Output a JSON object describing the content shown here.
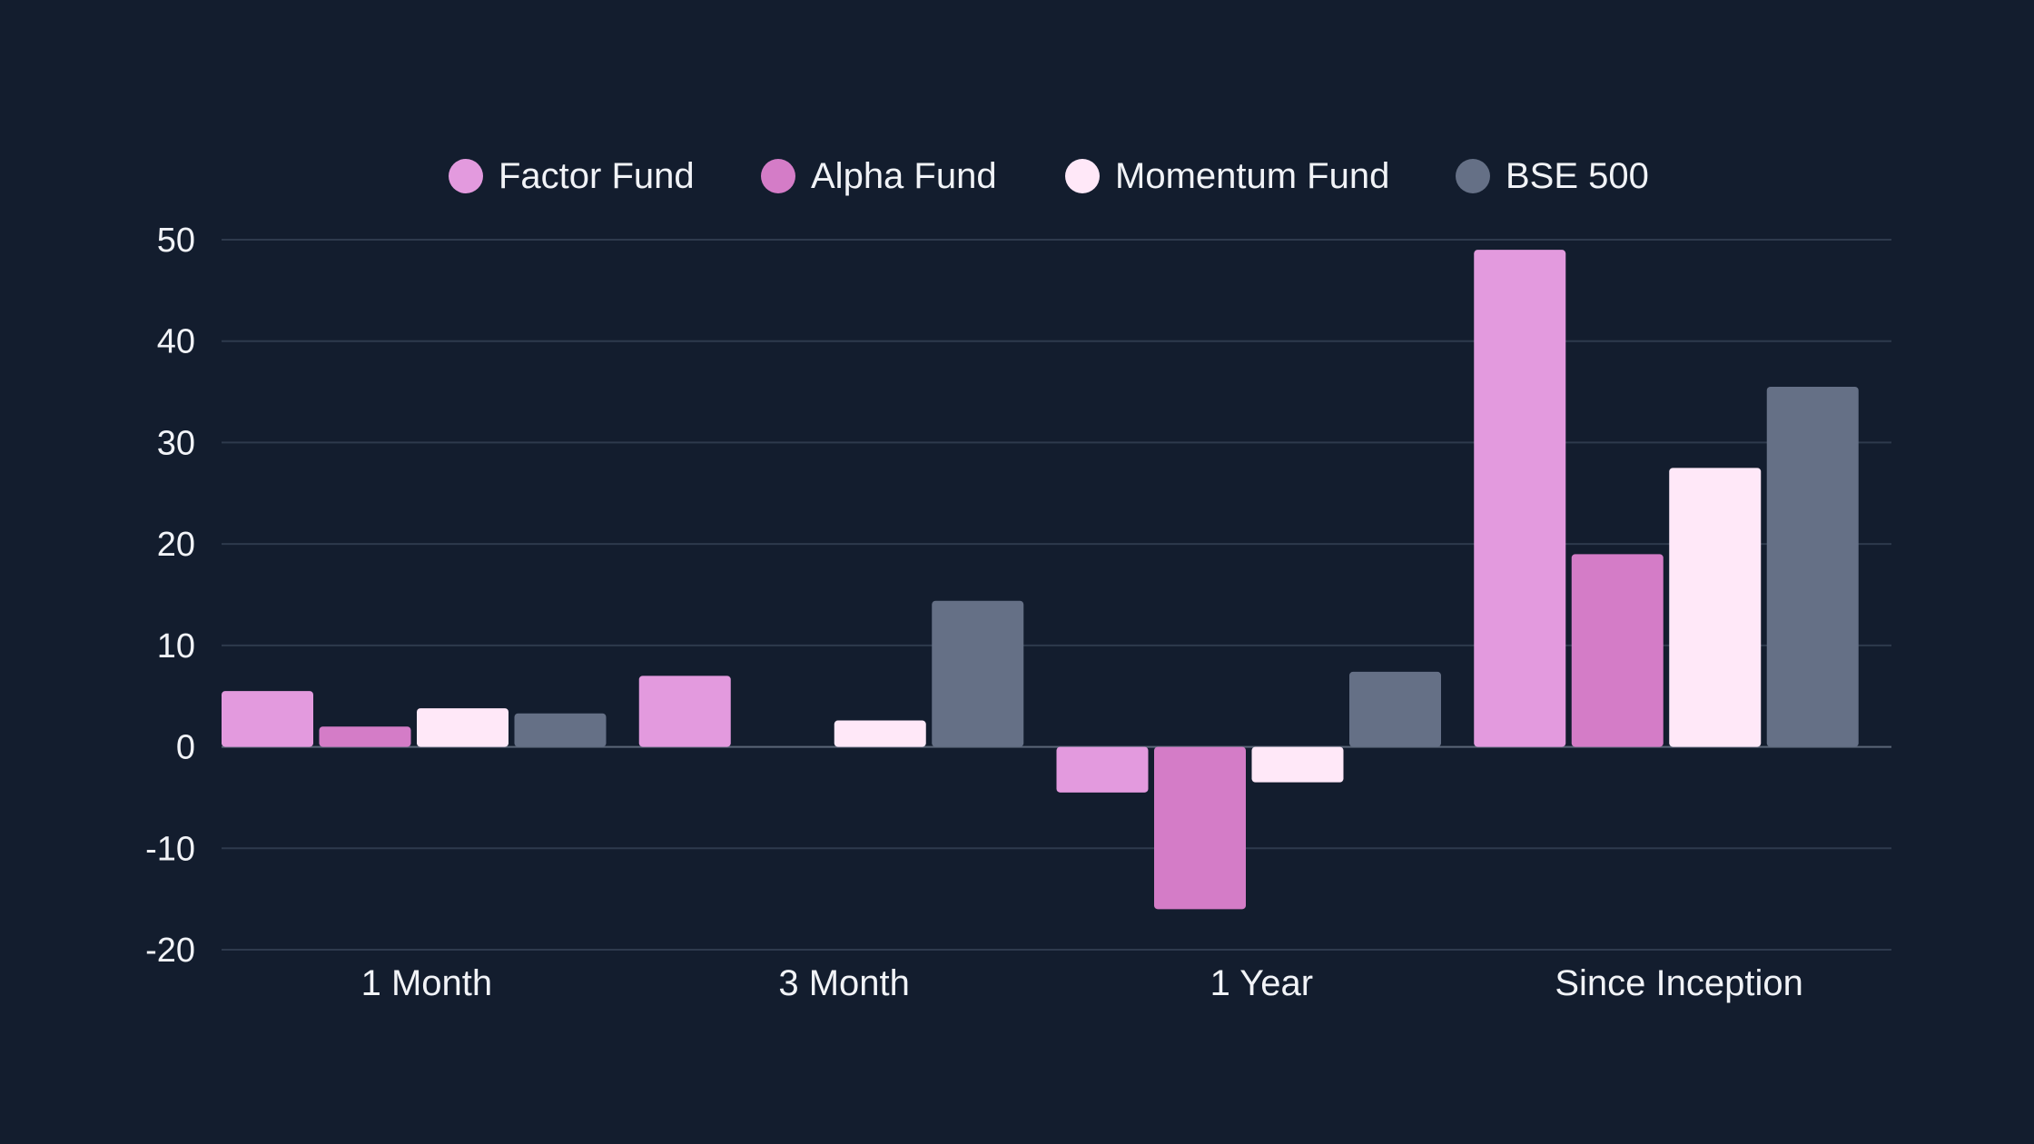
{
  "chart_data": {
    "type": "bar",
    "title": "",
    "xlabel": "",
    "ylabel": "",
    "categories": [
      "1 Month",
      "3 Month",
      "1 Year",
      "Since Inception"
    ],
    "series": [
      {
        "name": "Factor Fund",
        "color": "#e39ade",
        "values": [
          5.5,
          7.0,
          -4.5,
          49.0
        ]
      },
      {
        "name": "Alpha Fund",
        "color": "#d47cc7",
        "values": [
          2.0,
          0.0,
          -16.0,
          19.0
        ]
      },
      {
        "name": "Momentum Fund",
        "color": "#ffe8f8",
        "values": [
          3.8,
          2.6,
          -3.5,
          27.5
        ]
      },
      {
        "name": "BSE 500",
        "color": "#657086",
        "values": [
          3.3,
          14.4,
          7.4,
          35.5
        ]
      }
    ],
    "ylim": [
      -20,
      50
    ],
    "yticks": [
      50,
      40,
      30,
      20,
      10,
      0,
      -10,
      -20
    ],
    "grid": true,
    "legend": "top-center"
  }
}
